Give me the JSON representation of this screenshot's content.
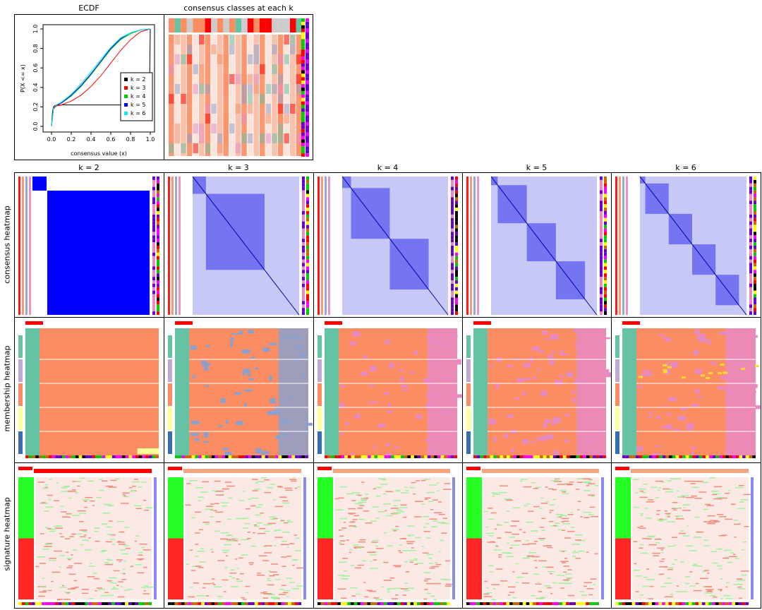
{
  "titles": {
    "ecdf": "ECDF",
    "classes": "consensus classes at each k",
    "k_labels": [
      "k = 2",
      "k = 3",
      "k = 4",
      "k = 5",
      "k = 6"
    ]
  },
  "row_labels": {
    "consensus": "consensus heatmap",
    "membership": "membership heatmap",
    "signature": "signature heatmap"
  },
  "colors": {
    "class1": "#ff0000",
    "class_salmon": "#fc8d62",
    "class_teal": "#66c2a5",
    "class_blue_grey": "#8da0cb",
    "class_pink": "#e78ac3",
    "class_yellow": "#ffd92f",
    "heat_blue": "#0000ff",
    "sig_red": "#ff0000",
    "sig_green": "#00ff00"
  },
  "chart_data": [
    {
      "type": "line",
      "title": "ECDF",
      "xlabel": "consensus value (x)",
      "ylabel": "P(X <= x)",
      "xlim": [
        0,
        1
      ],
      "ylim": [
        0,
        1
      ],
      "xticks": [
        "0.0",
        "0.2",
        "0.4",
        "0.6",
        "0.8",
        "1.0"
      ],
      "yticks": [
        "0.0",
        "0.2",
        "0.4",
        "0.6",
        "0.8",
        "1.0"
      ],
      "legend_position": "bottom-right",
      "series": [
        {
          "name": "k = 2",
          "color": "#000000",
          "x": [
            0,
            0.01,
            0.02,
            0.03,
            0.05,
            0.99,
            1.0
          ],
          "y": [
            0,
            0.15,
            0.2,
            0.21,
            0.22,
            0.22,
            1.0
          ]
        },
        {
          "name": "k = 3",
          "color": "#ff0000",
          "x": [
            0,
            0.02,
            0.05,
            0.1,
            0.2,
            0.3,
            0.4,
            0.5,
            0.6,
            0.7,
            0.8,
            0.9,
            1.0
          ],
          "y": [
            0,
            0.18,
            0.21,
            0.22,
            0.26,
            0.32,
            0.41,
            0.52,
            0.65,
            0.78,
            0.89,
            0.97,
            1.0
          ]
        },
        {
          "name": "k = 4",
          "color": "#00cd00",
          "x": [
            0,
            0.02,
            0.05,
            0.1,
            0.2,
            0.3,
            0.4,
            0.5,
            0.6,
            0.7,
            0.8,
            0.9,
            1.0
          ],
          "y": [
            0,
            0.19,
            0.22,
            0.24,
            0.31,
            0.41,
            0.53,
            0.66,
            0.79,
            0.89,
            0.95,
            0.99,
            1.0
          ]
        },
        {
          "name": "k = 5",
          "color": "#0000ff",
          "x": [
            0,
            0.02,
            0.05,
            0.1,
            0.2,
            0.3,
            0.4,
            0.5,
            0.6,
            0.7,
            0.8,
            0.9,
            1.0
          ],
          "y": [
            0,
            0.19,
            0.22,
            0.24,
            0.32,
            0.42,
            0.54,
            0.67,
            0.8,
            0.9,
            0.96,
            0.99,
            1.0
          ]
        },
        {
          "name": "k = 6",
          "color": "#00eeee",
          "x": [
            0,
            0.02,
            0.05,
            0.1,
            0.2,
            0.3,
            0.4,
            0.5,
            0.6,
            0.7,
            0.8,
            0.9,
            1.0
          ],
          "y": [
            0,
            0.19,
            0.22,
            0.25,
            0.33,
            0.44,
            0.56,
            0.69,
            0.81,
            0.91,
            0.96,
            0.99,
            1.0
          ]
        }
      ]
    },
    {
      "type": "heatmap",
      "title": "consensus classes at each k"
    },
    {
      "type": "heatmap",
      "title": "k = 2",
      "rows": [
        "consensus heatmap",
        "membership heatmap",
        "signature heatmap"
      ]
    },
    {
      "type": "heatmap",
      "title": "k = 3",
      "rows": [
        "consensus heatmap",
        "membership heatmap",
        "signature heatmap"
      ]
    },
    {
      "type": "heatmap",
      "title": "k = 4",
      "rows": [
        "consensus heatmap",
        "membership heatmap",
        "signature heatmap"
      ]
    },
    {
      "type": "heatmap",
      "title": "k = 5",
      "rows": [
        "consensus heatmap",
        "membership heatmap",
        "signature heatmap"
      ]
    },
    {
      "type": "heatmap",
      "title": "k = 6",
      "rows": [
        "consensus heatmap",
        "membership heatmap",
        "signature heatmap"
      ]
    }
  ]
}
